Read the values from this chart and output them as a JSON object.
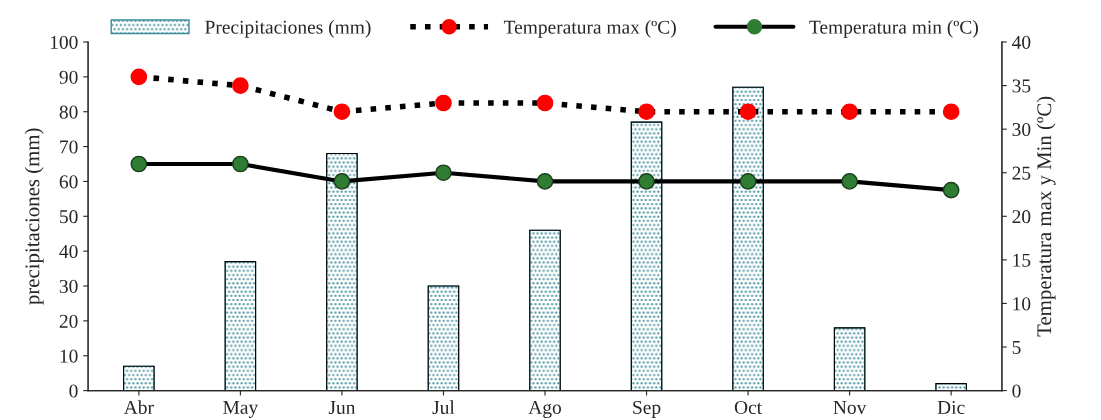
{
  "chart_data": {
    "type": "bar",
    "categories": [
      "Abr",
      "May",
      "Jun",
      "Jul",
      "Ago",
      "Sep",
      "Oct",
      "Nov",
      "Dic"
    ],
    "ylabel": "precipitaciones (mm)",
    "y2label": "Temperatura max y Min (ºC)",
    "series": [
      {
        "name": "Precipitaciones (mm)",
        "color": "#3a8a9a",
        "values": [
          7,
          37,
          68,
          30,
          46,
          77,
          87,
          18,
          2
        ]
      },
      {
        "name": "Temperatura max (ºC)",
        "type": "line",
        "axis": "y2",
        "color": "#ff0000",
        "marker": "circle",
        "line_style": "dotted",
        "values": [
          36,
          35,
          32,
          33,
          33,
          32,
          32,
          32,
          32
        ]
      },
      {
        "name": "Temperatura min (ºC)",
        "type": "line",
        "axis": "y2",
        "color": "#2e7d32",
        "marker": "circle",
        "line_style": "solid",
        "values": [
          26,
          26,
          24,
          25,
          24,
          24,
          24,
          24,
          23
        ]
      }
    ],
    "ylim": [
      0,
      100
    ],
    "yticks": [
      0,
      10,
      20,
      30,
      40,
      50,
      60,
      70,
      80,
      90,
      100
    ],
    "y2lim": [
      0,
      40
    ],
    "y2ticks": [
      0,
      5,
      10,
      15,
      20,
      25,
      30,
      35,
      40
    ],
    "grid": false,
    "legend": "top"
  }
}
